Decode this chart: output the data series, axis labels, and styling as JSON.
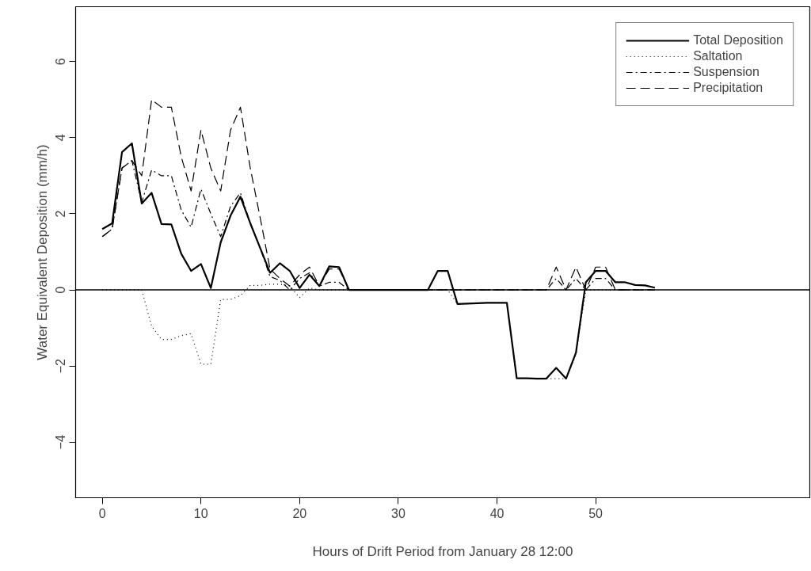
{
  "chart_data": {
    "type": "line",
    "xlabel": "Hours of Drift Period from January 28 12:00",
    "ylabel": "Water Equivalent Deposition (mm/h)",
    "x": [
      0,
      1,
      2,
      3,
      4,
      5,
      6,
      7,
      8,
      9,
      10,
      11,
      12,
      13,
      14,
      15,
      16,
      17,
      18,
      19,
      20,
      21,
      22,
      23,
      24,
      25,
      26,
      27,
      28,
      29,
      30,
      31,
      32,
      33,
      34,
      35,
      36,
      37,
      38,
      39,
      40,
      41,
      42,
      43,
      44,
      45,
      46,
      47,
      48,
      49,
      50,
      51,
      52,
      53,
      54,
      55,
      56
    ],
    "series": [
      {
        "name": "Total Deposition",
        "color": "#000000",
        "line_style": "solid",
        "values": [
          1.6,
          1.75,
          3.62,
          3.85,
          2.27,
          2.55,
          1.73,
          1.72,
          0.95,
          0.5,
          0.68,
          0.05,
          1.25,
          1.95,
          2.45,
          1.75,
          1.1,
          0.45,
          0.7,
          0.5,
          0.05,
          0.4,
          0.1,
          0.62,
          0.6,
          0,
          0,
          0,
          0,
          0,
          0,
          0,
          0,
          0,
          0.5,
          0.5,
          -0.37,
          -0.36,
          -0.35,
          -0.34,
          -0.34,
          -0.34,
          -2.32,
          -2.32,
          -2.33,
          -2.33,
          -2.05,
          -2.33,
          -1.65,
          0.2,
          0.5,
          0.5,
          0.2,
          0.2,
          0.13,
          0.12,
          0.06
        ]
      },
      {
        "name": "Saltation",
        "color": "#000000",
        "line_style": "dotted",
        "values": [
          0,
          0,
          0,
          0,
          0,
          -0.95,
          -1.3,
          -1.3,
          -1.2,
          -1.15,
          -1.95,
          -1.95,
          -0.25,
          -0.25,
          -0.15,
          0.12,
          0.12,
          0.15,
          0.15,
          0.1,
          -0.2,
          0.05,
          0,
          0,
          0,
          0,
          0,
          0,
          0,
          0,
          0,
          0,
          0,
          0,
          0,
          0,
          -0.37,
          -0.36,
          -0.35,
          -0.34,
          -0.34,
          -0.34,
          -2.32,
          -2.32,
          -2.33,
          -2.33,
          -2.33,
          -2.33,
          -1.7,
          0,
          0,
          0,
          0,
          0,
          0,
          0,
          0
        ]
      },
      {
        "name": "Suspension",
        "color": "#000000",
        "line_style": "dashdot",
        "values": [
          1.4,
          1.6,
          3.2,
          3.4,
          2.3,
          3.15,
          3.0,
          3.0,
          2.1,
          1.65,
          2.65,
          2.0,
          1.4,
          2.2,
          2.55,
          1.75,
          1.1,
          0.35,
          0.25,
          0,
          0.3,
          0.45,
          0.1,
          0.2,
          0.2,
          0,
          0,
          0,
          0,
          0,
          0,
          0,
          0,
          0,
          0,
          0,
          0,
          0,
          0,
          0,
          0,
          0,
          0,
          0,
          0,
          0,
          0.3,
          0,
          0.3,
          0,
          0.3,
          0.3,
          0,
          0,
          0,
          0,
          0
        ]
      },
      {
        "name": "Precipitation",
        "color": "#000000",
        "line_style": "dashed",
        "values": [
          1.4,
          1.6,
          3.2,
          3.4,
          3.0,
          5.0,
          4.8,
          4.8,
          3.5,
          2.6,
          4.2,
          3.2,
          2.6,
          4.2,
          4.8,
          3.2,
          1.9,
          0.55,
          0.3,
          0.1,
          0.4,
          0.6,
          0.1,
          0.55,
          0.55,
          0,
          0,
          0,
          0,
          0,
          0,
          0,
          0,
          0,
          0,
          0,
          0,
          0,
          0,
          0,
          0,
          0,
          0,
          0,
          0,
          0,
          0.6,
          0,
          0.6,
          0,
          0.6,
          0.6,
          0,
          0,
          0,
          0,
          0
        ]
      }
    ],
    "xlim": [
      -2.7,
      71.7
    ],
    "ylim": [
      -5.46,
      7.44
    ],
    "xticks": [
      0,
      10,
      20,
      30,
      40,
      50
    ],
    "yticks": [
      -4,
      -2,
      0,
      2,
      4,
      6
    ],
    "ref_lines": [
      {
        "axis": "y",
        "value": 0,
        "color": "#000000"
      }
    ],
    "grid": false,
    "legend": "top right"
  }
}
